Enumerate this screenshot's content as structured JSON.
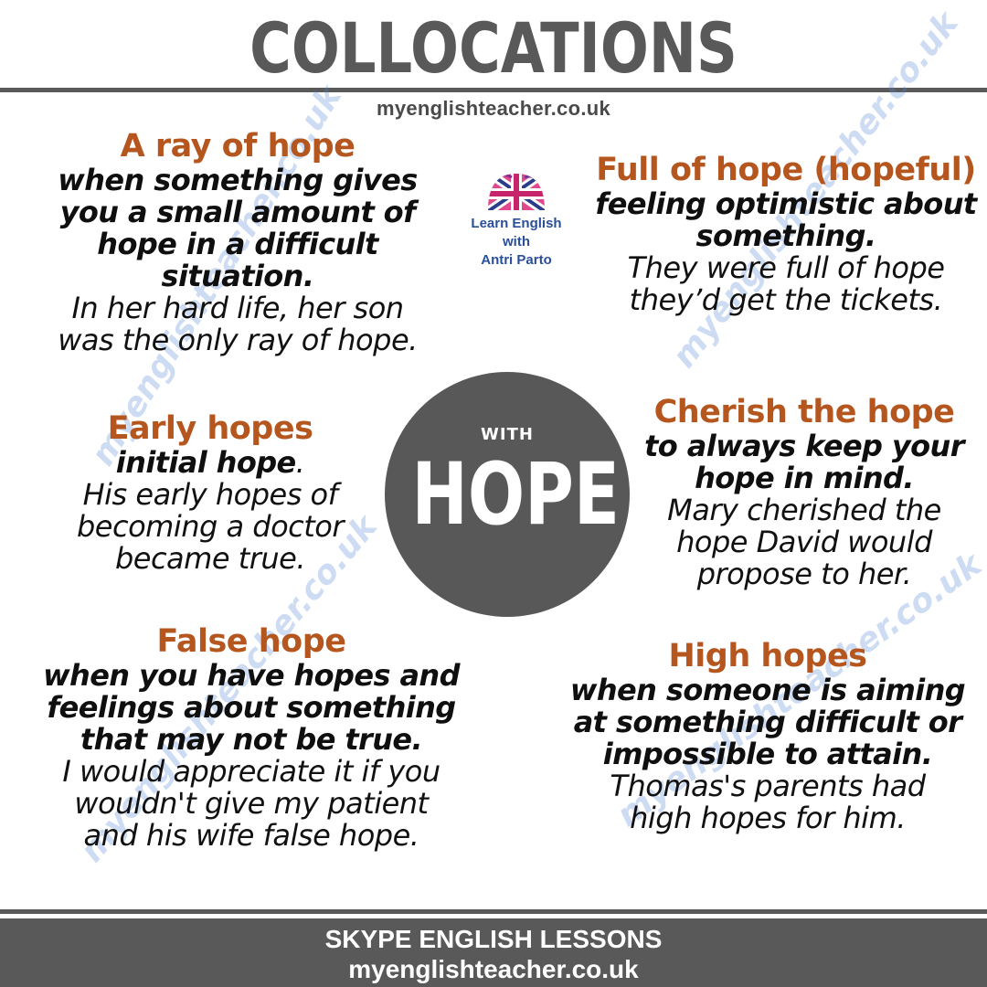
{
  "header": {
    "title": "COLLOCATIONS",
    "site": "myenglishteacher.co.uk"
  },
  "logo": {
    "line1": "Learn English",
    "line2": "with",
    "line3": "Antri Parto"
  },
  "center": {
    "small": "WITH",
    "big": "HOPE"
  },
  "collocations": {
    "ray": {
      "heading": "A ray of hope",
      "definition": [
        "when something gives",
        "you a small amount of",
        "hope in a difficult",
        "situation."
      ],
      "example": [
        "In her hard life, her son",
        "was the only ray of hope."
      ]
    },
    "full": {
      "heading": "Full of hope (hopeful)",
      "definition": [
        "feeling optimistic about",
        "something."
      ],
      "example": [
        "They were full of hope",
        "they’d get the tickets."
      ]
    },
    "early": {
      "heading": "Early hopes",
      "definition": [
        "initial hope"
      ],
      "definition_tail": ".",
      "example": [
        "His early hopes of",
        "becoming a doctor",
        "became true."
      ]
    },
    "cherish": {
      "heading": "Cherish the hope",
      "definition": [
        "to always keep your",
        "hope in mind."
      ],
      "example": [
        "Mary cherished the",
        "hope David would",
        "propose to her."
      ]
    },
    "false": {
      "heading": "False hope",
      "definition": [
        "when you have hopes and",
        "feelings about something",
        "that may not be true."
      ],
      "example": [
        "I would appreciate it if you",
        "wouldn't give my patient",
        "and his wife false hope."
      ]
    },
    "high": {
      "heading": "High hopes",
      "definition": [
        "when someone is aiming",
        "at something difficult or",
        "impossible to attain."
      ],
      "example": [
        "Thomas's parents had",
        "high hopes for him."
      ]
    }
  },
  "watermark": "myenglishteacher.co.uk",
  "footer": {
    "line1": "SKYPE ENGLISH LESSONS",
    "line2": "myenglishteacher.co.uk"
  },
  "colors": {
    "heading": "#b5561f",
    "gray": "#595959",
    "watermark": "#4f86d6"
  }
}
